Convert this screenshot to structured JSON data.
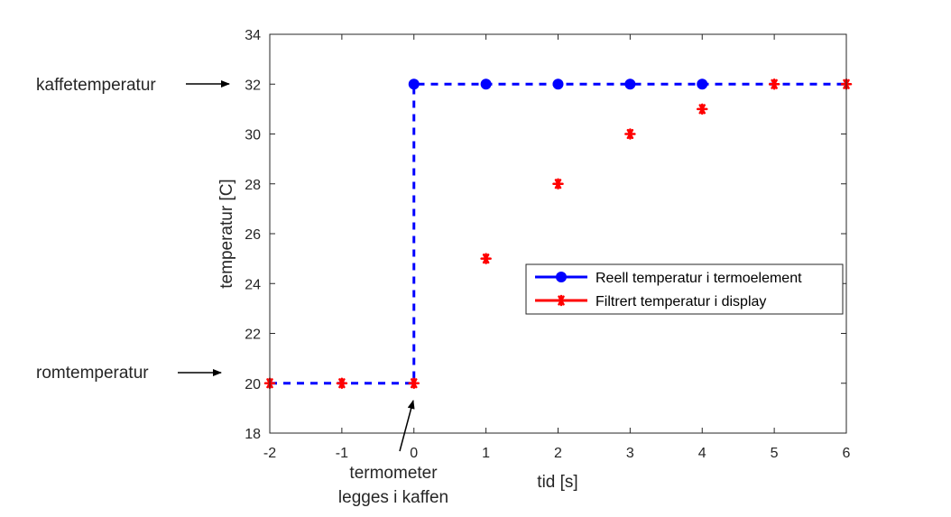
{
  "chart_data": {
    "type": "line",
    "title": "",
    "xlabel": "tid [s]",
    "ylabel": "temperatur [C]",
    "xlim": [
      -2,
      6
    ],
    "ylim": [
      18,
      34
    ],
    "xticks": [
      "-2",
      "-1",
      "0",
      "1",
      "2",
      "3",
      "4",
      "5",
      "6"
    ],
    "yticks": [
      "18",
      "20",
      "22",
      "24",
      "26",
      "28",
      "30",
      "32",
      "34"
    ],
    "grid": false,
    "legend_position": "right",
    "series": [
      {
        "name": "Reell temperatur i termoelement",
        "color": "#0000ff",
        "style": "dashed-line-with-circles",
        "line_x": [
          -2,
          0,
          0,
          6
        ],
        "line_y": [
          20,
          20,
          32,
          32
        ],
        "marker_x": [
          0,
          1,
          2,
          3,
          4
        ],
        "marker_y": [
          32,
          32,
          32,
          32,
          32
        ]
      },
      {
        "name": "Filtrert temperatur i display",
        "color": "#ff0000",
        "style": "asterisk-markers",
        "x": [
          -2,
          -1,
          0,
          1,
          2,
          3,
          4,
          5,
          6
        ],
        "y": [
          20,
          20,
          20,
          25,
          28,
          30,
          31,
          32,
          32
        ]
      }
    ],
    "annotations": [
      {
        "id": "kaffe",
        "text": "kaffetemperatur",
        "points_to": [
          -2,
          32
        ]
      },
      {
        "id": "rom",
        "text": "romtemperatur",
        "points_to": [
          -2,
          20
        ]
      },
      {
        "id": "termo",
        "lines": [
          "termometer",
          "legges i kaffen"
        ],
        "points_to": [
          0,
          20
        ]
      }
    ]
  }
}
